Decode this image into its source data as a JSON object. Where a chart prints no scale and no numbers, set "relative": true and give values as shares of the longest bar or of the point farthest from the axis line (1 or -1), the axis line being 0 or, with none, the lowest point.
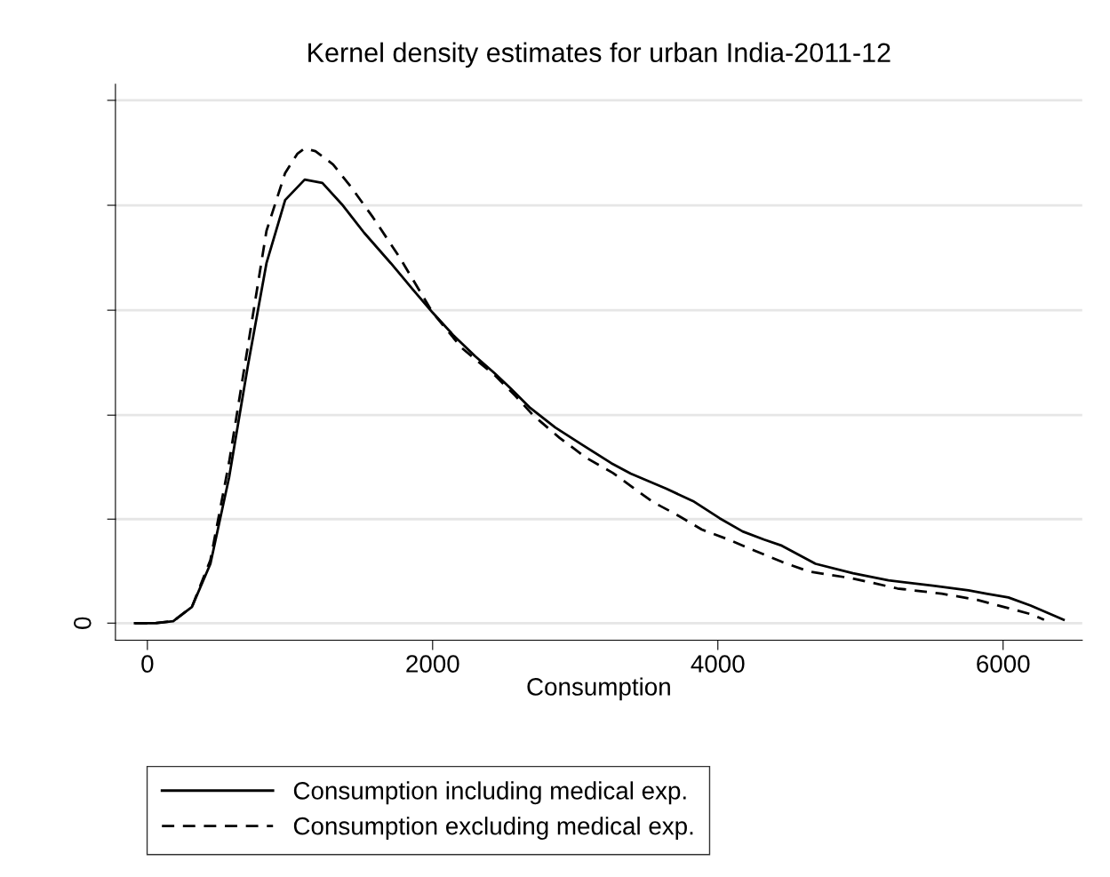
{
  "chart_data": {
    "type": "line",
    "title": "Kernel density estimates for urban India-2011-12",
    "xlabel": "Consumption",
    "relative": true,
    "xlim": [
      -224,
      6555
    ],
    "xticks": [
      0,
      2000,
      4000,
      6000
    ],
    "ref_lines": [
      {
        "axis": "y",
        "value": 0,
        "label": "0",
        "color": "#e6e6e6"
      },
      {
        "axis": "y",
        "value": 0.219,
        "color": "#e6e6e6"
      },
      {
        "axis": "y",
        "value": 0.438,
        "color": "#e6e6e6"
      },
      {
        "axis": "y",
        "value": 0.659,
        "color": "#e6e6e6"
      },
      {
        "axis": "y",
        "value": 0.88,
        "color": "#e6e6e6"
      },
      {
        "axis": "y",
        "value": 1.101,
        "color": "#e6e6e6"
      }
    ],
    "legend": "bottom",
    "series": [
      {
        "name": "Consumption including medical exp.",
        "color": "#000000",
        "line_style": "solid",
        "x": [
          -87,
          56,
          181,
          312,
          442,
          573,
          704,
          835,
          966,
          1103,
          1227,
          1364,
          1520,
          1707,
          1863,
          2000,
          2143,
          2299,
          2436,
          2548,
          2685,
          2860,
          3047,
          3252,
          3389,
          3639,
          3826,
          4012,
          4174,
          4324,
          4449,
          4685,
          4947,
          5196,
          5508,
          5757,
          5882,
          6037,
          6193,
          6424
        ],
        "values": [
          0,
          0,
          0.004,
          0.034,
          0.125,
          0.307,
          0.541,
          0.758,
          0.891,
          0.934,
          0.927,
          0.882,
          0.822,
          0.758,
          0.702,
          0.654,
          0.607,
          0.562,
          0.526,
          0.494,
          0.453,
          0.412,
          0.376,
          0.337,
          0.315,
          0.283,
          0.257,
          0.221,
          0.193,
          0.176,
          0.163,
          0.125,
          0.105,
          0.09,
          0.079,
          0.069,
          0.062,
          0.054,
          0.037,
          0.007
        ]
      },
      {
        "name": "Consumption excluding medical exp.",
        "color": "#000000",
        "line_style": "dashed",
        "x": [
          -87,
          56,
          181,
          312,
          442,
          573,
          704,
          835,
          966,
          1053,
          1103,
          1178,
          1302,
          1427,
          1583,
          1769,
          2000,
          2206,
          2436,
          2579,
          2704,
          2891,
          3078,
          3265,
          3545,
          3701,
          3888,
          4075,
          4262,
          4449,
          4636,
          4947,
          5259,
          5570,
          5819,
          6006,
          6193,
          6287
        ],
        "values": [
          0,
          0,
          0.004,
          0.034,
          0.133,
          0.339,
          0.582,
          0.826,
          0.948,
          0.989,
          1.0,
          0.994,
          0.966,
          0.919,
          0.854,
          0.77,
          0.654,
          0.579,
          0.522,
          0.479,
          0.438,
          0.39,
          0.348,
          0.316,
          0.255,
          0.23,
          0.197,
          0.176,
          0.152,
          0.129,
          0.109,
          0.094,
          0.073,
          0.062,
          0.049,
          0.034,
          0.019,
          0.007
        ]
      }
    ]
  }
}
